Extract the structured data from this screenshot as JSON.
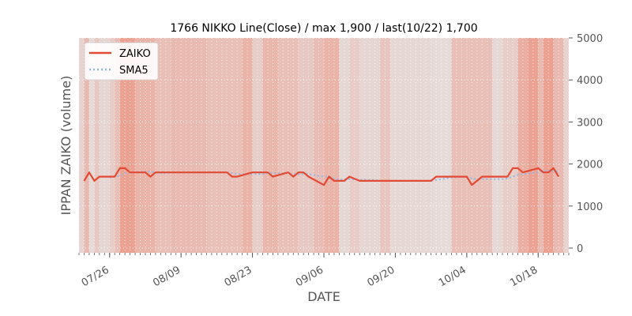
{
  "chart_data": {
    "type": "line",
    "title": "1766 NIKKO Line(Close) / max 1,900 / last(10/22) 1,700",
    "xlabel": "DATE",
    "ylabel": "IPPAN ZAIKO (volume)",
    "ylim": [
      0,
      5000
    ],
    "y_ticks": [
      0,
      1000,
      2000,
      3000,
      4000,
      5000
    ],
    "y_tick_labels": [
      "0",
      "1000",
      "2000",
      "3000",
      "4000",
      "5000"
    ],
    "y_axis_side": "right",
    "x_tick_labels": [
      "07/26",
      "08/09",
      "08/23",
      "09/06",
      "09/20",
      "10/04",
      "10/18"
    ],
    "x_tick_dates": [
      "2021-07-26",
      "2021-08-09",
      "2021-08-23",
      "2021-09-06",
      "2021-09-20",
      "2021-10-04",
      "2021-10-18"
    ],
    "x_range": [
      "2021-07-20",
      "2021-10-24"
    ],
    "grid": true,
    "legend_position": "top-left",
    "colors": {
      "zaiko": "#E24A33",
      "sma5": "#8EBAE5",
      "plot_background": "#E5E5E5",
      "band_color": "#F26B50"
    },
    "series": [
      {
        "name": "ZAIKO",
        "style": "solid",
        "x": [
          "2021-07-21",
          "2021-07-22",
          "2021-07-23",
          "2021-07-24",
          "2021-07-26",
          "2021-07-27",
          "2021-07-28",
          "2021-07-29",
          "2021-07-30",
          "2021-08-02",
          "2021-08-03",
          "2021-08-04",
          "2021-08-05",
          "2021-08-06",
          "2021-08-07",
          "2021-08-09",
          "2021-08-10",
          "2021-08-11",
          "2021-08-12",
          "2021-08-13",
          "2021-08-16",
          "2021-08-17",
          "2021-08-18",
          "2021-08-19",
          "2021-08-20",
          "2021-08-23",
          "2021-08-24",
          "2021-08-25",
          "2021-08-26",
          "2021-08-27",
          "2021-08-30",
          "2021-08-31",
          "2021-09-01",
          "2021-09-02",
          "2021-09-03",
          "2021-09-06",
          "2021-09-07",
          "2021-09-08",
          "2021-09-09",
          "2021-09-10",
          "2021-09-11",
          "2021-09-13",
          "2021-09-14",
          "2021-09-15",
          "2021-09-16",
          "2021-09-17",
          "2021-09-20",
          "2021-09-21",
          "2021-09-22",
          "2021-09-24",
          "2021-09-27",
          "2021-09-28",
          "2021-09-29",
          "2021-09-30",
          "2021-10-01",
          "2021-10-04",
          "2021-10-05",
          "2021-10-06",
          "2021-10-07",
          "2021-10-08",
          "2021-10-11",
          "2021-10-12",
          "2021-10-13",
          "2021-10-14",
          "2021-10-15",
          "2021-10-18",
          "2021-10-19",
          "2021-10-20",
          "2021-10-21",
          "2021-10-22"
        ],
        "values": [
          1600,
          1800,
          1600,
          1700,
          1700,
          1700,
          1900,
          1900,
          1800,
          1800,
          1700,
          1800,
          1800,
          1800,
          1800,
          1800,
          1800,
          1800,
          1800,
          1800,
          1800,
          1800,
          1800,
          1700,
          1700,
          1800,
          1800,
          1800,
          1800,
          1700,
          1800,
          1700,
          1800,
          1800,
          1700,
          1500,
          1700,
          1600,
          1600,
          1600,
          1700,
          1600,
          1600,
          1600,
          1600,
          1600,
          1600,
          1600,
          1600,
          1600,
          1600,
          1700,
          1700,
          1700,
          1700,
          1700,
          1500,
          1600,
          1700,
          1700,
          1700,
          1700,
          1900,
          1900,
          1800,
          1900,
          1800,
          1800,
          1900,
          1700
        ]
      },
      {
        "name": "SMA5",
        "style": "dotted",
        "x": [
          "2021-07-26",
          "2021-07-27",
          "2021-07-28",
          "2021-07-29",
          "2021-07-30",
          "2021-08-02",
          "2021-08-03",
          "2021-08-04",
          "2021-08-05",
          "2021-08-06",
          "2021-08-07",
          "2021-08-09",
          "2021-08-10",
          "2021-08-11",
          "2021-08-12",
          "2021-08-13",
          "2021-08-16",
          "2021-08-17",
          "2021-08-18",
          "2021-08-19",
          "2021-08-20",
          "2021-08-23",
          "2021-08-24",
          "2021-08-25",
          "2021-08-26",
          "2021-08-27",
          "2021-08-30",
          "2021-08-31",
          "2021-09-01",
          "2021-09-02",
          "2021-09-03",
          "2021-09-06",
          "2021-09-07",
          "2021-09-08",
          "2021-09-09",
          "2021-09-10",
          "2021-09-11",
          "2021-09-13",
          "2021-09-14",
          "2021-09-15",
          "2021-09-16",
          "2021-09-17",
          "2021-09-20",
          "2021-09-21",
          "2021-09-22",
          "2021-09-24",
          "2021-09-27",
          "2021-09-28",
          "2021-09-29",
          "2021-09-30",
          "2021-10-01",
          "2021-10-04",
          "2021-10-05",
          "2021-10-06",
          "2021-10-07",
          "2021-10-08",
          "2021-10-11",
          "2021-10-12",
          "2021-10-13",
          "2021-10-14",
          "2021-10-15",
          "2021-10-18",
          "2021-10-19",
          "2021-10-20",
          "2021-10-21",
          "2021-10-22"
        ],
        "values": [
          1680,
          1700,
          1720,
          1780,
          1800,
          1820,
          1820,
          1800,
          1780,
          1780,
          1800,
          1800,
          1800,
          1800,
          1800,
          1800,
          1800,
          1800,
          1800,
          1780,
          1760,
          1760,
          1760,
          1760,
          1780,
          1780,
          1780,
          1760,
          1760,
          1760,
          1760,
          1700,
          1700,
          1660,
          1620,
          1640,
          1640,
          1620,
          1620,
          1620,
          1620,
          1600,
          1600,
          1600,
          1600,
          1600,
          1600,
          1620,
          1640,
          1660,
          1680,
          1700,
          1660,
          1640,
          1640,
          1640,
          1640,
          1660,
          1700,
          1740,
          1760,
          1800,
          1840,
          1840,
          1840,
          1820
        ]
      }
    ],
    "bands": [
      {
        "start": "2021-07-20",
        "end": "2021-07-21",
        "level": 0.15
      },
      {
        "start": "2021-07-21",
        "end": "2021-07-22",
        "level": 0.35
      },
      {
        "start": "2021-07-22",
        "end": "2021-07-23",
        "level": 0.08
      },
      {
        "start": "2021-07-23",
        "end": "2021-07-24",
        "level": 0.22
      },
      {
        "start": "2021-07-24",
        "end": "2021-07-26",
        "level": 0.12
      },
      {
        "start": "2021-07-26",
        "end": "2021-07-27",
        "level": 0.2
      },
      {
        "start": "2021-07-27",
        "end": "2021-07-28",
        "level": 0.3
      },
      {
        "start": "2021-07-28",
        "end": "2021-07-31",
        "level": 0.55
      },
      {
        "start": "2021-07-31",
        "end": "2021-08-04",
        "level": 0.4
      },
      {
        "start": "2021-08-04",
        "end": "2021-08-07",
        "level": 0.3
      },
      {
        "start": "2021-08-07",
        "end": "2021-08-14",
        "level": 0.35
      },
      {
        "start": "2021-08-14",
        "end": "2021-08-21",
        "level": 0.3
      },
      {
        "start": "2021-08-21",
        "end": "2021-08-23",
        "level": 0.4
      },
      {
        "start": "2021-08-23",
        "end": "2021-08-25",
        "level": 0.18
      },
      {
        "start": "2021-08-25",
        "end": "2021-08-28",
        "level": 0.38
      },
      {
        "start": "2021-08-28",
        "end": "2021-09-01",
        "level": 0.3
      },
      {
        "start": "2021-09-01",
        "end": "2021-09-04",
        "level": 0.22
      },
      {
        "start": "2021-09-04",
        "end": "2021-09-06",
        "level": 0.32
      },
      {
        "start": "2021-09-06",
        "end": "2021-09-09",
        "level": 0.4
      },
      {
        "start": "2021-09-09",
        "end": "2021-09-11",
        "level": 0.1
      },
      {
        "start": "2021-09-11",
        "end": "2021-09-13",
        "level": 0.2
      },
      {
        "start": "2021-09-13",
        "end": "2021-09-17",
        "level": 0.12
      },
      {
        "start": "2021-09-17",
        "end": "2021-09-19",
        "level": 0.25
      },
      {
        "start": "2021-09-19",
        "end": "2021-09-27",
        "level": 0.1
      },
      {
        "start": "2021-09-27",
        "end": "2021-10-01",
        "level": 0.08
      },
      {
        "start": "2021-10-01",
        "end": "2021-10-09",
        "level": 0.3
      },
      {
        "start": "2021-10-09",
        "end": "2021-10-11",
        "level": 0.1
      },
      {
        "start": "2021-10-11",
        "end": "2021-10-14",
        "level": 0.18
      },
      {
        "start": "2021-10-14",
        "end": "2021-10-16",
        "level": 0.45
      },
      {
        "start": "2021-10-16",
        "end": "2021-10-18",
        "level": 0.55
      },
      {
        "start": "2021-10-18",
        "end": "2021-10-19",
        "level": 0.35
      },
      {
        "start": "2021-10-19",
        "end": "2021-10-21",
        "level": 0.55
      },
      {
        "start": "2021-10-21",
        "end": "2021-10-23",
        "level": 0.35
      },
      {
        "start": "2021-10-23",
        "end": "2021-10-24",
        "level": 0.15
      }
    ]
  }
}
